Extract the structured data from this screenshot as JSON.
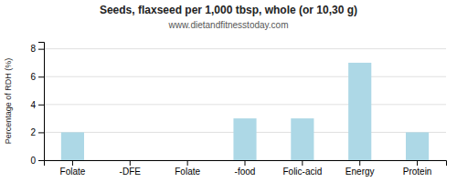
{
  "chart_data": {
    "type": "bar",
    "title": "Seeds, flaxseed per 1,000 tbsp, whole (or 10,30 g)",
    "subtitle": "www.dietandfitnesstoday.com",
    "categories": [
      "Folate",
      "-DFE",
      "Folate",
      "-food",
      "Folic-acid",
      "Energy",
      "Protein"
    ],
    "values": [
      2.0,
      0.0,
      0.0,
      3.0,
      3.0,
      7.0,
      2.0
    ],
    "color": "#add8e6",
    "ylabel": "Percentage of RDH (%)",
    "ylim": [
      0,
      8.5
    ],
    "yticks": [
      0,
      2,
      4,
      6,
      8
    ],
    "grid": true
  }
}
